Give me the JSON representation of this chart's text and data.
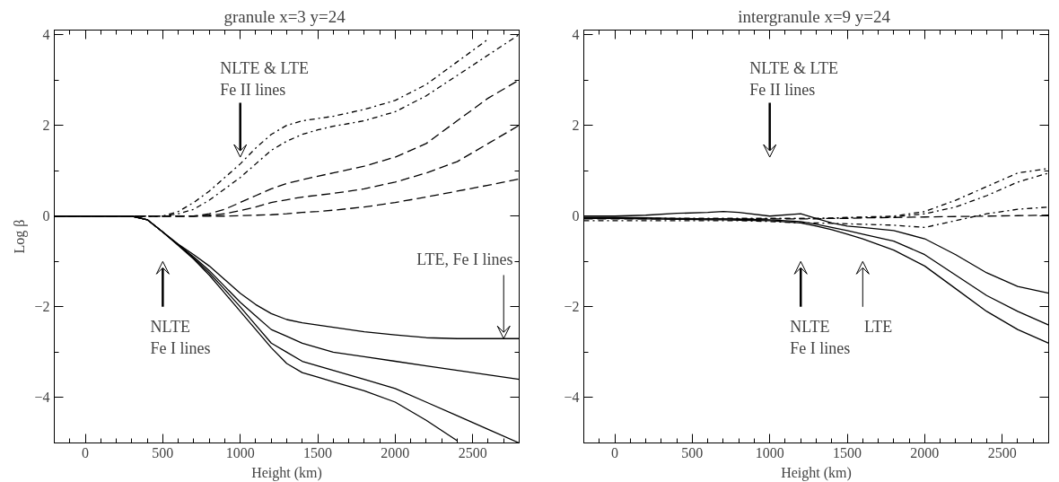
{
  "chart_data": [
    {
      "type": "line",
      "title": "granule x=3  y=24",
      "xlabel": "Height (km)",
      "ylabel": "Log β",
      "xlim": [
        -200,
        2800
      ],
      "ylim": [
        -5,
        4.1
      ],
      "xticks": [
        0,
        500,
        1000,
        1500,
        2000,
        2500
      ],
      "yticks": [
        -4,
        -2,
        0,
        2,
        4
      ],
      "x": [
        -200,
        0,
        200,
        300,
        400,
        500,
        600,
        700,
        800,
        900,
        1000,
        1100,
        1200,
        1300,
        1400,
        1500,
        1600,
        1800,
        2000,
        2200,
        2400,
        2600,
        2800
      ],
      "series": [
        {
          "color": "#000000",
          "line_style": "dashdot",
          "values": [
            0,
            0,
            0,
            0,
            0,
            0,
            0.05,
            0.15,
            0.35,
            0.6,
            0.85,
            1.15,
            1.45,
            1.65,
            1.8,
            1.9,
            1.98,
            2.1,
            2.3,
            2.65,
            3.1,
            3.55,
            4.0
          ]
        },
        {
          "color": "#000000",
          "line_style": "dashdot",
          "values": [
            0,
            0,
            0,
            0,
            0,
            0,
            0.1,
            0.3,
            0.55,
            0.85,
            1.15,
            1.5,
            1.8,
            2.0,
            2.1,
            2.15,
            2.2,
            2.35,
            2.55,
            2.9,
            3.4,
            3.9,
            null
          ]
        },
        {
          "color": "#000000",
          "line_style": "dashed",
          "values": [
            0,
            0,
            0,
            0,
            0,
            0,
            0,
            0,
            0,
            0,
            0.01,
            0.02,
            0.03,
            0.05,
            0.08,
            0.1,
            0.13,
            0.2,
            0.3,
            0.42,
            0.55,
            0.68,
            0.82
          ]
        },
        {
          "color": "#000000",
          "line_style": "dashed",
          "values": [
            0,
            0,
            0,
            0,
            0,
            0,
            0,
            0,
            0.05,
            0.15,
            0.3,
            0.45,
            0.6,
            0.72,
            0.8,
            0.88,
            0.95,
            1.1,
            1.3,
            1.6,
            2.1,
            2.6,
            3.0
          ]
        },
        {
          "color": "#000000",
          "line_style": "dashed",
          "values": [
            0,
            0,
            0,
            0,
            0,
            0,
            0,
            0,
            0.02,
            0.05,
            0.12,
            0.2,
            0.3,
            0.36,
            0.42,
            0.46,
            0.5,
            0.6,
            0.75,
            0.95,
            1.2,
            1.6,
            2.0
          ]
        },
        {
          "color": "#000000",
          "line_style": "solid",
          "values": [
            0,
            0,
            0,
            0,
            -0.08,
            -0.35,
            -0.65,
            -0.95,
            -1.3,
            -1.7,
            -2.1,
            -2.5,
            -2.9,
            -3.25,
            -3.45,
            -3.55,
            -3.65,
            -3.85,
            -4.1,
            -4.5,
            -4.95,
            null,
            null
          ]
        },
        {
          "color": "#000000",
          "line_style": "solid",
          "values": [
            0,
            0,
            0,
            0,
            -0.08,
            -0.35,
            -0.62,
            -0.85,
            -1.1,
            -1.4,
            -1.7,
            -1.95,
            -2.15,
            -2.28,
            -2.35,
            -2.4,
            -2.45,
            -2.55,
            -2.62,
            -2.68,
            -2.7,
            -2.7,
            -2.7
          ]
        },
        {
          "color": "#000000",
          "line_style": "solid",
          "values": [
            0,
            0,
            0,
            0,
            -0.08,
            -0.35,
            -0.63,
            -0.9,
            -1.2,
            -1.55,
            -1.9,
            -2.2,
            -2.5,
            -2.65,
            -2.8,
            -2.9,
            -3.0,
            -3.1,
            -3.2,
            -3.3,
            -3.4,
            -3.5,
            -3.6
          ]
        },
        {
          "color": "#000000",
          "line_style": "solid",
          "values": [
            0,
            0,
            0,
            0,
            -0.08,
            -0.35,
            -0.64,
            -0.93,
            -1.25,
            -1.62,
            -2.0,
            -2.4,
            -2.8,
            -3.0,
            -3.2,
            -3.3,
            -3.4,
            -3.6,
            -3.8,
            -4.1,
            -4.4,
            -4.7,
            -5.0
          ]
        }
      ],
      "annotations": [
        "NLTE & LTE\nFe II lines",
        "NLTE\nFe I lines",
        {
          "text": "LTE, Fe I lines",
          "x": 2700,
          "y": -2.7
        }
      ]
    },
    {
      "type": "line",
      "title": "intergranule x=9  y=24",
      "xlabel": "Height (km)",
      "xlim": [
        -200,
        2800
      ],
      "ylim": [
        -5,
        4.1
      ],
      "xticks": [
        0,
        500,
        1000,
        1500,
        2000,
        2500
      ],
      "yticks": [
        -4,
        -2,
        0,
        2,
        4
      ],
      "x": [
        -200,
        0,
        200,
        400,
        600,
        700,
        800,
        1000,
        1200,
        1300,
        1400,
        1500,
        1600,
        1800,
        2000,
        2200,
        2400,
        2600,
        2800
      ],
      "series": [
        {
          "color": "#000000",
          "line_style": "solid",
          "values": [
            0,
            0,
            0.02,
            0.06,
            0.08,
            0.1,
            0.08,
            0,
            0.05,
            -0.05,
            -0.15,
            -0.22,
            -0.25,
            -0.32,
            -0.5,
            -0.85,
            -1.25,
            -1.55,
            -1.7
          ]
        },
        {
          "color": "#000000",
          "line_style": "solid",
          "values": [
            -0.05,
            -0.05,
            -0.06,
            -0.07,
            -0.08,
            -0.08,
            -0.09,
            -0.1,
            -0.15,
            -0.22,
            -0.3,
            -0.4,
            -0.5,
            -0.75,
            -1.1,
            -1.6,
            -2.1,
            -2.5,
            -2.8
          ]
        },
        {
          "color": "#000000",
          "line_style": "solid",
          "values": [
            -0.03,
            -0.03,
            -0.04,
            -0.05,
            -0.06,
            -0.06,
            -0.07,
            -0.08,
            -0.12,
            -0.18,
            -0.25,
            -0.32,
            -0.4,
            -0.55,
            -0.85,
            -1.3,
            -1.75,
            -2.1,
            -2.4
          ]
        },
        {
          "color": "#000000",
          "line_style": "dashdot",
          "values": [
            -0.05,
            -0.05,
            -0.05,
            -0.05,
            -0.05,
            -0.05,
            -0.05,
            -0.05,
            -0.05,
            -0.05,
            -0.05,
            -0.04,
            -0.03,
            -0.02,
            0.05,
            0.2,
            0.45,
            0.75,
            0.95
          ]
        },
        {
          "color": "#000000",
          "line_style": "dashdot",
          "values": [
            -0.1,
            -0.1,
            -0.1,
            -0.1,
            -0.1,
            -0.1,
            -0.1,
            -0.12,
            -0.15,
            -0.15,
            -0.16,
            -0.17,
            -0.18,
            -0.2,
            -0.25,
            -0.1,
            0.05,
            0.15,
            0.2
          ]
        },
        {
          "color": "#000000",
          "line_style": "dashdot",
          "values": [
            -0.05,
            -0.05,
            -0.05,
            -0.05,
            -0.05,
            -0.05,
            -0.05,
            -0.05,
            -0.05,
            -0.05,
            -0.04,
            -0.03,
            -0.02,
            0.0,
            0.1,
            0.35,
            0.65,
            0.95,
            1.05
          ]
        },
        {
          "color": "#000000",
          "line_style": "dashed",
          "values": [
            -0.06,
            -0.06,
            -0.06,
            -0.06,
            -0.06,
            -0.06,
            -0.06,
            -0.06,
            -0.06,
            -0.06,
            -0.05,
            -0.05,
            -0.04,
            -0.03,
            -0.02,
            -0.01,
            0.0,
            0.01,
            0.02
          ]
        }
      ],
      "annotations": [
        "NLTE & LTE\nFe II lines",
        "NLTE\nFe I lines",
        "LTE"
      ]
    }
  ]
}
